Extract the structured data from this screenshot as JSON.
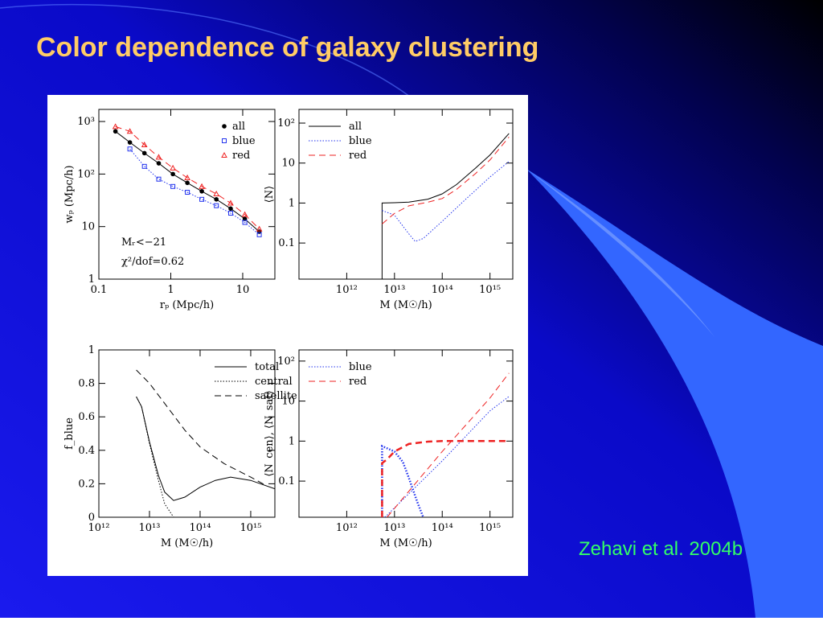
{
  "title": "Color dependence of galaxy clustering",
  "citation": "Zehavi et al. 2004b",
  "chart_data": [
    {
      "type": "line",
      "xlog": true,
      "ylog": true,
      "xlabel": "rₚ (Mpc/h)",
      "ylabel": "wₚ (Mpc/h)",
      "xlim": [
        0.1,
        28
      ],
      "ylim": [
        1,
        1700
      ],
      "xticks": [
        0.1,
        1,
        10
      ],
      "yticks": [
        1,
        10,
        {
          "value": 100,
          "label": "10²"
        },
        {
          "value": 1000,
          "label": "10³"
        }
      ],
      "legend": "upper right",
      "annotations": [
        "Mᵣ<−21",
        "χ²/dof=0.62"
      ],
      "x": [
        0.17,
        0.27,
        0.43,
        0.68,
        1.07,
        1.7,
        2.7,
        4.3,
        6.8,
        10.7,
        17
      ],
      "series": [
        {
          "name": "all",
          "color": "#000000",
          "dash": "solid",
          "marker": "filled-circle",
          "values": [
            650,
            400,
            250,
            160,
            100,
            68,
            47,
            33,
            22,
            14,
            8
          ]
        },
        {
          "name": "blue",
          "color": "#2233ee",
          "dash": "dotted",
          "marker": "open-square",
          "values": [
            null,
            300,
            140,
            80,
            58,
            45,
            33,
            25,
            18,
            12,
            7
          ]
        },
        {
          "name": "red",
          "color": "#ee2222",
          "dash": "dashed",
          "marker": "open-triangle",
          "values": [
            800,
            650,
            360,
            210,
            130,
            85,
            58,
            42,
            28,
            17,
            9
          ]
        }
      ]
    },
    {
      "type": "line",
      "xlog": true,
      "ylog": true,
      "xlabel": "M (M☉/h)",
      "ylabel": "⟨N⟩",
      "xlim": [
        100000000000.0,
        3000000000000000.0
      ],
      "ylim": [
        0.0125,
        220
      ],
      "xticks": [
        {
          "value": 1000000000000.0,
          "label": "10¹²"
        },
        {
          "value": 10000000000000.0,
          "label": "10¹³"
        },
        {
          "value": 100000000000000.0,
          "label": "10¹⁴"
        },
        {
          "value": 1000000000000000.0,
          "label": "10¹⁵"
        }
      ],
      "yticks": [
        0.1,
        1,
        10,
        {
          "value": 100,
          "label": "10²"
        }
      ],
      "legend": "upper left",
      "series": [
        {
          "name": "all",
          "color": "#000000",
          "dash": "solid",
          "x": [
            5500000000000.0,
            5500000000000.0,
            10000000000000.0,
            20000000000000.0,
            50000000000000.0,
            100000000000000.0,
            200000000000000.0,
            500000000000000.0,
            1000000000000000.0,
            2500000000000000.0
          ],
          "values": [
            0.0125,
            1,
            1.02,
            1.06,
            1.25,
            1.7,
            2.9,
            7.5,
            16,
            55
          ]
        },
        {
          "name": "blue",
          "color": "#2233ee",
          "dash": "dotted",
          "x": [
            5500000000000.0,
            10000000000000.0,
            20000000000000.0,
            27000000000000.0,
            40000000000000.0,
            100000000000000.0,
            300000000000000.0,
            1000000000000000.0,
            2500000000000000.0
          ],
          "values": [
            0.65,
            0.5,
            0.17,
            0.11,
            0.13,
            0.35,
            1.2,
            4.5,
            11
          ]
        },
        {
          "name": "red",
          "color": "#ee2222",
          "dash": "dashed",
          "x": [
            5500000000000.0,
            10000000000000.0,
            20000000000000.0,
            50000000000000.0,
            100000000000000.0,
            200000000000000.0,
            500000000000000.0,
            1000000000000000.0,
            2500000000000000.0
          ],
          "values": [
            0.3,
            0.55,
            0.85,
            1.05,
            1.3,
            2.2,
            5.5,
            12,
            45
          ]
        }
      ]
    },
    {
      "type": "line",
      "xlog": true,
      "ylog": false,
      "xlabel": "M (M☉/h)",
      "ylabel": "f_blue",
      "xlim": [
        1000000000000.0,
        3000000000000000.0
      ],
      "ylim": [
        0,
        1
      ],
      "xticks": [
        {
          "value": 1000000000000.0,
          "label": "10¹²"
        },
        {
          "value": 10000000000000.0,
          "label": "10¹³"
        },
        {
          "value": 100000000000000.0,
          "label": "10¹⁴"
        },
        {
          "value": 1000000000000000.0,
          "label": "10¹⁵"
        }
      ],
      "yticks": [
        0,
        0.2,
        0.4,
        0.6,
        0.8,
        1
      ],
      "legend": "upper right",
      "series": [
        {
          "name": "total",
          "color": "#000000",
          "dash": "solid",
          "x": [
            5500000000000.0,
            7000000000000.0,
            10000000000000.0,
            15000000000000.0,
            20000000000000.0,
            30000000000000.0,
            50000000000000.0,
            100000000000000.0,
            200000000000000.0,
            400000000000000.0,
            1000000000000000.0,
            3000000000000000.0
          ],
          "values": [
            0.72,
            0.66,
            0.45,
            0.25,
            0.15,
            0.1,
            0.12,
            0.18,
            0.22,
            0.24,
            0.22,
            0.17
          ]
        },
        {
          "name": "central",
          "color": "#000000",
          "dash": "dotted",
          "x": [
            5500000000000.0,
            7000000000000.0,
            10000000000000.0,
            15000000000000.0,
            20000000000000.0,
            30000000000000.0
          ],
          "values": [
            0.72,
            0.66,
            0.44,
            0.22,
            0.08,
            0
          ]
        },
        {
          "name": "satellite",
          "color": "#000000",
          "dash": "dashed",
          "x": [
            5500000000000.0,
            10000000000000.0,
            20000000000000.0,
            50000000000000.0,
            100000000000000.0,
            300000000000000.0,
            1000000000000000.0,
            2000000000000000.0
          ],
          "values": [
            0.88,
            0.8,
            0.68,
            0.52,
            0.42,
            0.32,
            0.24,
            0.19
          ]
        }
      ]
    },
    {
      "type": "line",
      "xlog": true,
      "ylog": true,
      "xlabel": "M (M☉/h)",
      "ylabel": "⟨N_cen⟩, ⟨N_sat⟩",
      "xlim": [
        100000000000.0,
        3000000000000000.0
      ],
      "ylim": [
        0.0125,
        190
      ],
      "xticks": [
        {
          "value": 1000000000000.0,
          "label": "10¹²"
        },
        {
          "value": 10000000000000.0,
          "label": "10¹³"
        },
        {
          "value": 100000000000000.0,
          "label": "10¹⁴"
        },
        {
          "value": 1000000000000000.0,
          "label": "10¹⁵"
        }
      ],
      "yticks": [
        0.1,
        1,
        10,
        {
          "value": 100,
          "label": "10²"
        }
      ],
      "legend": "upper left",
      "series": [
        {
          "name": "blue",
          "color": "#2233ee",
          "dash": "dotted",
          "curves": [
            {
              "width": 2.5,
              "x": [
                5500000000000.0,
                5500000000000.0,
                10000000000000.0,
                15000000000000.0,
                20000000000000.0,
                30000000000000.0,
                40000000000000.0
              ],
              "values": [
                0.0125,
                0.75,
                0.55,
                0.3,
                0.12,
                0.03,
                0.0125
              ]
            },
            {
              "width": 1,
              "x": [
                6300000000000.0,
                100000000000000.0,
                1000000000000000.0,
                2500000000000000.0
              ],
              "values": [
                0.0125,
                0.32,
                5.7,
                13
              ]
            }
          ]
        },
        {
          "name": "red",
          "color": "#ee2222",
          "dash": "dashed",
          "curves": [
            {
              "width": 2.5,
              "x": [
                5500000000000.0,
                5500000000000.0,
                7000000000000.0,
                10000000000000.0,
                20000000000000.0,
                50000000000000.0,
                100000000000000.0,
                1000000000000000.0,
                2500000000000000.0
              ],
              "values": [
                0.0125,
                0.28,
                0.35,
                0.55,
                0.85,
                0.97,
                1,
                1,
                1
              ]
            },
            {
              "width": 1,
              "x": [
                7000000000000.0,
                100000000000000.0,
                1000000000000000.0,
                2500000000000000.0
              ],
              "values": [
                0.0125,
                0.55,
                12,
                50
              ]
            }
          ]
        }
      ]
    }
  ]
}
